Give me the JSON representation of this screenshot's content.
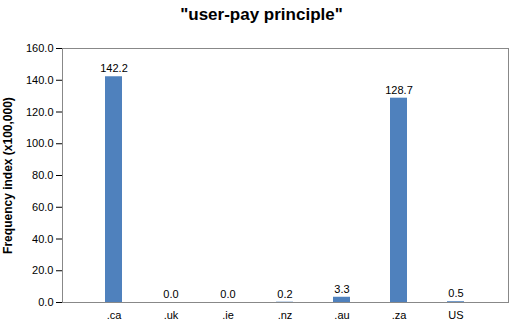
{
  "chart_data": {
    "type": "bar",
    "title": "\"user-pay principle\"",
    "ylabel": "Frequency index (x100,000)",
    "categories": [
      ".ca",
      ".uk",
      ".ie",
      ".nz",
      ".au",
      ".za",
      "US"
    ],
    "values": [
      142.2,
      0.0,
      0.0,
      0.2,
      3.3,
      128.7,
      0.5
    ],
    "value_labels": [
      "142.2",
      "0.0",
      "0.0",
      "0.2",
      "3.3",
      "128.7",
      "0.5"
    ],
    "color": "#4f81bd",
    "ylim": [
      0,
      160
    ],
    "yticks": [
      {
        "value": 0,
        "label": "0.0"
      },
      {
        "value": 20,
        "label": "20.0"
      },
      {
        "value": 40,
        "label": "40.0"
      },
      {
        "value": 60,
        "label": "60.0"
      },
      {
        "value": 80,
        "label": "80.0"
      },
      {
        "value": 100,
        "label": "100.0"
      },
      {
        "value": 120,
        "label": "120.0"
      },
      {
        "value": 140,
        "label": "140.0"
      },
      {
        "value": 160,
        "label": "160.0"
      }
    ],
    "grid": false,
    "data_labels": true
  }
}
